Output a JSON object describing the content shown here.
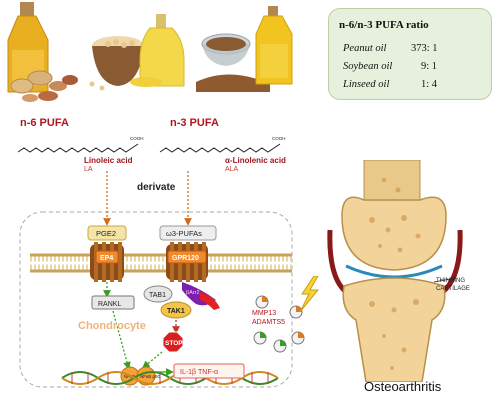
{
  "ratio_box": {
    "title": "n-6/n-3 PUFA ratio",
    "rows": [
      {
        "oil": "Peanut oil",
        "ratio": "373: 1"
      },
      {
        "oil": "Soybean oil",
        "ratio": "9: 1"
      },
      {
        "oil": "Linseed oil",
        "ratio": "1: 4"
      }
    ]
  },
  "n6": {
    "title": "n-6 PUFA",
    "acid": "Linoleic acid",
    "abbr": "LA",
    "cooh": "COOH"
  },
  "n3": {
    "title": "n-3 PUFA",
    "acid": "α-Linolenic acid",
    "abbr": "ALA",
    "cooh": "COOH"
  },
  "derivate_label": "derivate",
  "pathway": {
    "pge2": "PGE2",
    "ep4": "EP4",
    "omega3": "ω3-PUFAs",
    "gpr120": "GPR120",
    "rankl": "RANKL",
    "tab1": "TAB1",
    "tak1": "TAK1",
    "barr2": "βArr2",
    "stop": "STOP",
    "nfkb_left": "NFκB p65",
    "nfkb_right": "NFκB p50",
    "cytokines": "IL-1β  TNF-α",
    "mmp13": "MMP13",
    "adamts5": "ADAMTS5"
  },
  "chondrocyte_label": "Chondrocyte",
  "joint": {
    "thinning": "THINNING",
    "cartilage": "CARTILAGE",
    "caption": "Osteoarthritis"
  },
  "colors": {
    "accent_red": "#b0171f",
    "arrow_orange": "#d2691e",
    "arrow_green": "#3a9d23",
    "box_green": "#e7f0dc"
  }
}
